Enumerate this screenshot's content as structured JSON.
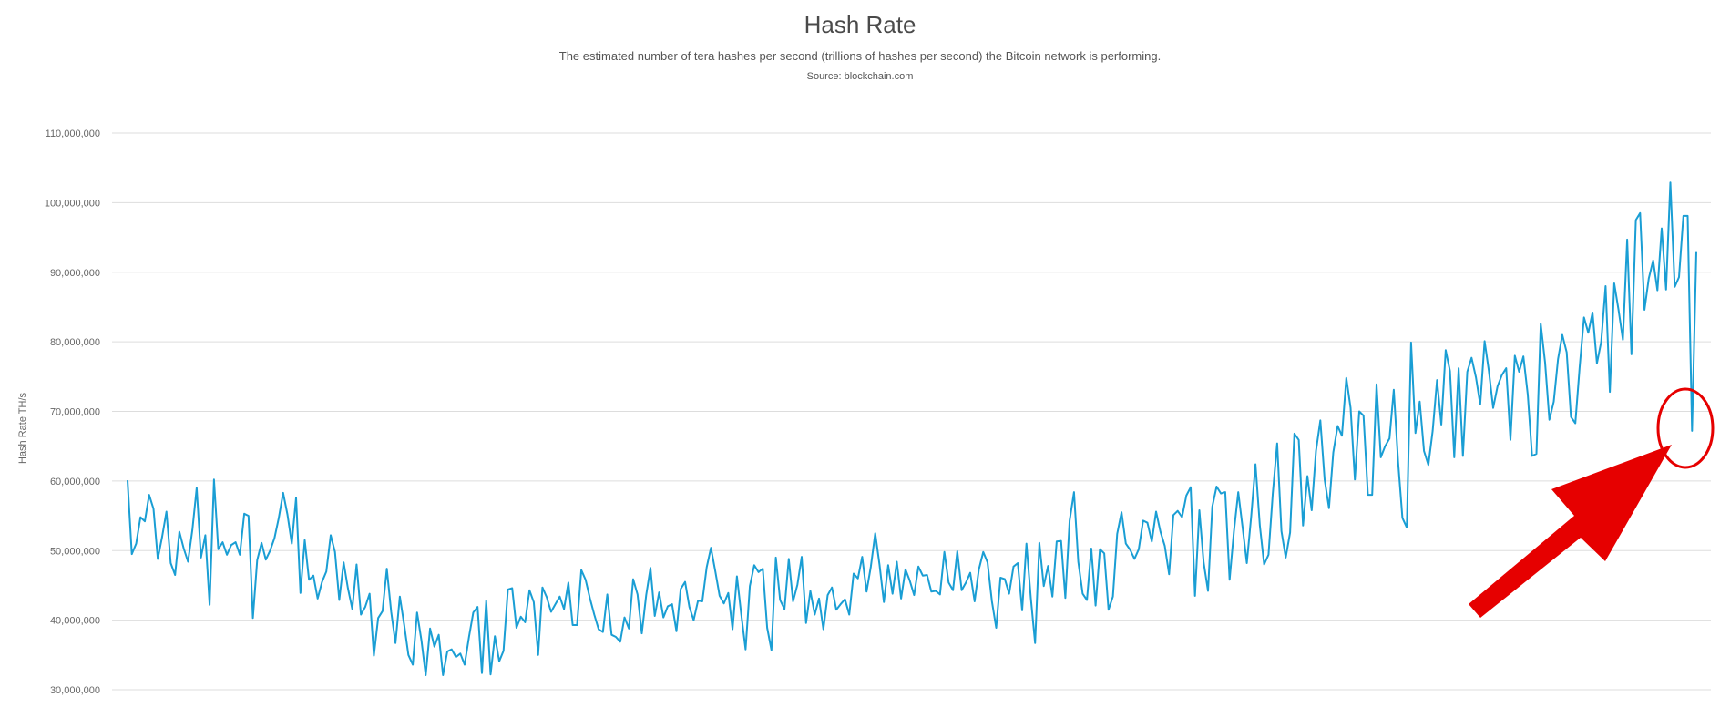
{
  "chart_data": {
    "type": "line",
    "title": "Hash Rate",
    "subtitle": "The estimated number of tera hashes per second (trillions of hashes per second) the Bitcoin network is performing.",
    "source": "Source: blockchain.com",
    "ylabel": "Hash Rate TH/s",
    "xlabel": "",
    "ylim": [
      30000000,
      110000000
    ],
    "y_ticks": [
      "30,000,000",
      "40,000,000",
      "50,000,000",
      "60,000,000",
      "70,000,000",
      "80,000,000",
      "90,000,000",
      "100,000,000",
      "110,000,000"
    ],
    "y_tick_values": [
      30000000,
      40000000,
      50000000,
      60000000,
      70000000,
      80000000,
      90000000,
      100000000,
      110000000
    ],
    "grid": true,
    "series": [
      {
        "color": "#1a9ed4",
        "values": [
          60100000,
          49500000,
          51000000,
          54800000,
          54200000,
          58000000,
          56000000,
          48800000,
          52000000,
          55600000,
          48200000,
          46500000,
          52700000,
          50300000,
          48400000,
          53000000,
          59000000,
          49000000,
          52200000,
          42200000,
          60200000,
          50200000,
          51200000,
          49400000,
          50800000,
          51200000,
          49400000,
          55300000,
          55000000,
          40300000,
          48600000,
          51100000,
          48700000,
          50000000,
          51800000,
          54700000,
          58300000,
          55200000,
          51000000,
          57600000,
          43900000,
          51500000,
          45800000,
          46400000,
          43100000,
          45500000,
          47000000,
          52200000,
          49800000,
          42900000,
          48300000,
          44600000,
          41600000,
          48000000,
          40800000,
          41900000,
          43800000,
          34900000,
          40300000,
          41300000,
          47400000,
          41200000,
          36700000,
          43400000,
          39400000,
          35000000,
          33600000,
          41100000,
          37100000,
          32100000,
          38800000,
          36200000,
          37900000,
          32100000,
          35500000,
          35800000,
          34700000,
          35200000,
          33600000,
          37600000,
          41100000,
          41900000,
          32400000,
          42800000,
          32200000,
          37700000,
          34100000,
          35600000,
          44400000,
          44600000,
          38900000,
          40500000,
          39700000,
          44300000,
          42600000,
          35000000,
          44700000,
          43300000,
          41200000,
          42300000,
          43400000,
          41600000,
          45400000,
          39300000,
          39300000,
          47200000,
          45800000,
          43100000,
          40800000,
          38700000,
          38300000,
          43700000,
          37900000,
          37600000,
          36900000,
          40400000,
          38800000,
          45900000,
          43700000,
          38100000,
          43600000,
          47500000,
          40600000,
          44000000,
          40400000,
          42000000,
          42300000,
          38400000,
          44500000,
          45500000,
          41900000,
          40000000,
          42800000,
          42700000,
          47600000,
          50400000,
          47000000,
          43500000,
          42400000,
          43900000,
          38700000,
          46300000,
          40900000,
          35800000,
          44900000,
          47900000,
          46900000,
          47400000,
          38900000,
          35700000,
          49000000,
          42900000,
          41600000,
          48800000,
          42700000,
          45100000,
          49100000,
          39600000,
          44200000,
          40800000,
          43100000,
          38700000,
          43600000,
          44700000,
          41500000,
          42300000,
          43000000,
          40800000,
          46700000,
          46000000,
          49100000,
          44100000,
          47700000,
          52500000,
          48000000,
          42600000,
          47900000,
          43800000,
          48400000,
          43100000,
          47300000,
          45700000,
          43600000,
          47700000,
          46400000,
          46500000,
          44100000,
          44200000,
          43700000,
          49800000,
          45400000,
          44300000,
          49900000,
          44300000,
          45400000,
          46800000,
          42700000,
          47300000,
          49800000,
          48300000,
          42700000,
          38900000,
          46100000,
          45900000,
          43800000,
          47700000,
          48200000,
          41400000,
          51000000,
          43200000,
          36700000,
          51100000,
          44900000,
          47800000,
          43400000,
          51300000,
          51400000,
          43200000,
          54300000,
          58400000,
          48400000,
          43800000,
          42900000,
          50300000,
          42100000,
          50200000,
          49600000,
          41500000,
          43400000,
          52400000,
          55500000,
          51000000,
          50100000,
          48800000,
          50200000,
          54300000,
          54000000,
          51300000,
          55600000,
          52700000,
          50700000,
          46600000,
          55100000,
          55700000,
          54800000,
          57900000,
          59100000,
          43500000,
          55800000,
          48300000,
          44200000,
          56300000,
          59200000,
          58200000,
          58400000,
          45800000,
          52700000,
          58400000,
          53400000,
          48200000,
          54900000,
          62400000,
          53600000,
          48000000,
          49400000,
          58200000,
          65400000,
          52800000,
          49000000,
          52600000,
          66800000,
          65900000,
          53600000,
          60700000,
          55800000,
          64300000,
          68700000,
          60200000,
          56100000,
          64100000,
          67900000,
          66500000,
          74800000,
          70500000,
          60200000,
          70000000,
          69400000,
          58000000,
          58000000,
          73900000,
          63400000,
          65000000,
          66100000,
          73100000,
          62700000,
          54700000,
          53300000,
          79900000,
          66900000,
          71400000,
          64300000,
          62300000,
          67200000,
          74500000,
          68100000,
          78800000,
          75800000,
          63400000,
          76200000,
          63600000,
          75700000,
          77700000,
          74900000,
          71000000,
          80100000,
          75800000,
          70500000,
          73600000,
          75200000,
          76200000,
          65900000,
          78000000,
          75700000,
          77900000,
          72400000,
          63600000,
          63900000,
          82600000,
          77000000,
          68800000,
          71400000,
          77500000,
          81000000,
          78500000,
          69200000,
          68300000,
          76300000,
          83500000,
          81300000,
          84200000,
          76900000,
          80000000,
          88000000,
          72800000,
          88400000,
          84600000,
          80300000,
          94700000,
          78200000,
          97500000,
          98500000,
          84600000,
          89100000,
          91700000,
          87400000,
          96300000,
          87500000,
          102900000,
          87900000,
          89300000,
          98100000,
          98100000,
          67200000,
          92900000
        ]
      }
    ]
  },
  "annotation": {
    "circle_color": "#e60000",
    "arrow_color": "#e60000"
  }
}
